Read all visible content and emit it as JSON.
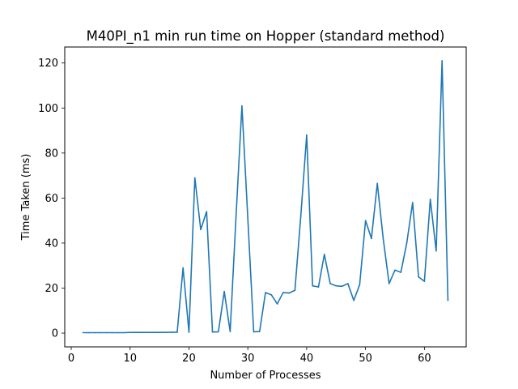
{
  "chart_data": {
    "type": "line",
    "title": "M40PI_n1 min run time on Hopper (standard method)",
    "xlabel": "Number of Processes",
    "ylabel": "Time Taken (ms)",
    "xlim": [
      -1.1,
      67.1
    ],
    "ylim": [
      -6.1,
      127.1
    ],
    "xticks": [
      0,
      10,
      20,
      30,
      40,
      50,
      60
    ],
    "yticks": [
      0,
      20,
      40,
      60,
      80,
      100,
      120
    ],
    "grid": false,
    "line_color": "#1f77b4",
    "series": [
      {
        "x": [
          2,
          3,
          4,
          5,
          6,
          7,
          8,
          9,
          10,
          11,
          12,
          13,
          14,
          15,
          16,
          17,
          18,
          19,
          20,
          21,
          22,
          23,
          24,
          25,
          26,
          27,
          28,
          29,
          30,
          31,
          32,
          33,
          34,
          35,
          36,
          37,
          38,
          39,
          40,
          41,
          42,
          43,
          44,
          45,
          46,
          47,
          48,
          49,
          50,
          51,
          52,
          53,
          54,
          55,
          56,
          57,
          58,
          59,
          60,
          61,
          62,
          63,
          64
        ],
        "values": [
          0.2,
          0.2,
          0.2,
          0.2,
          0.2,
          0.2,
          0.2,
          0.2,
          0.3,
          0.3,
          0.3,
          0.3,
          0.3,
          0.3,
          0.3,
          0.4,
          0.4,
          29,
          0.4,
          69,
          46,
          54,
          0.5,
          0.6,
          18.5,
          0.7,
          52,
          101,
          51,
          0.6,
          0.7,
          18,
          17,
          13,
          18,
          17.8,
          19,
          52,
          88,
          21,
          20.5,
          35,
          22,
          21,
          20.8,
          22,
          14.5,
          21.5,
          50,
          42,
          66.5,
          42,
          22,
          28,
          27,
          40,
          58,
          25,
          23,
          59.5,
          36.5,
          121,
          14.5
        ]
      }
    ]
  }
}
